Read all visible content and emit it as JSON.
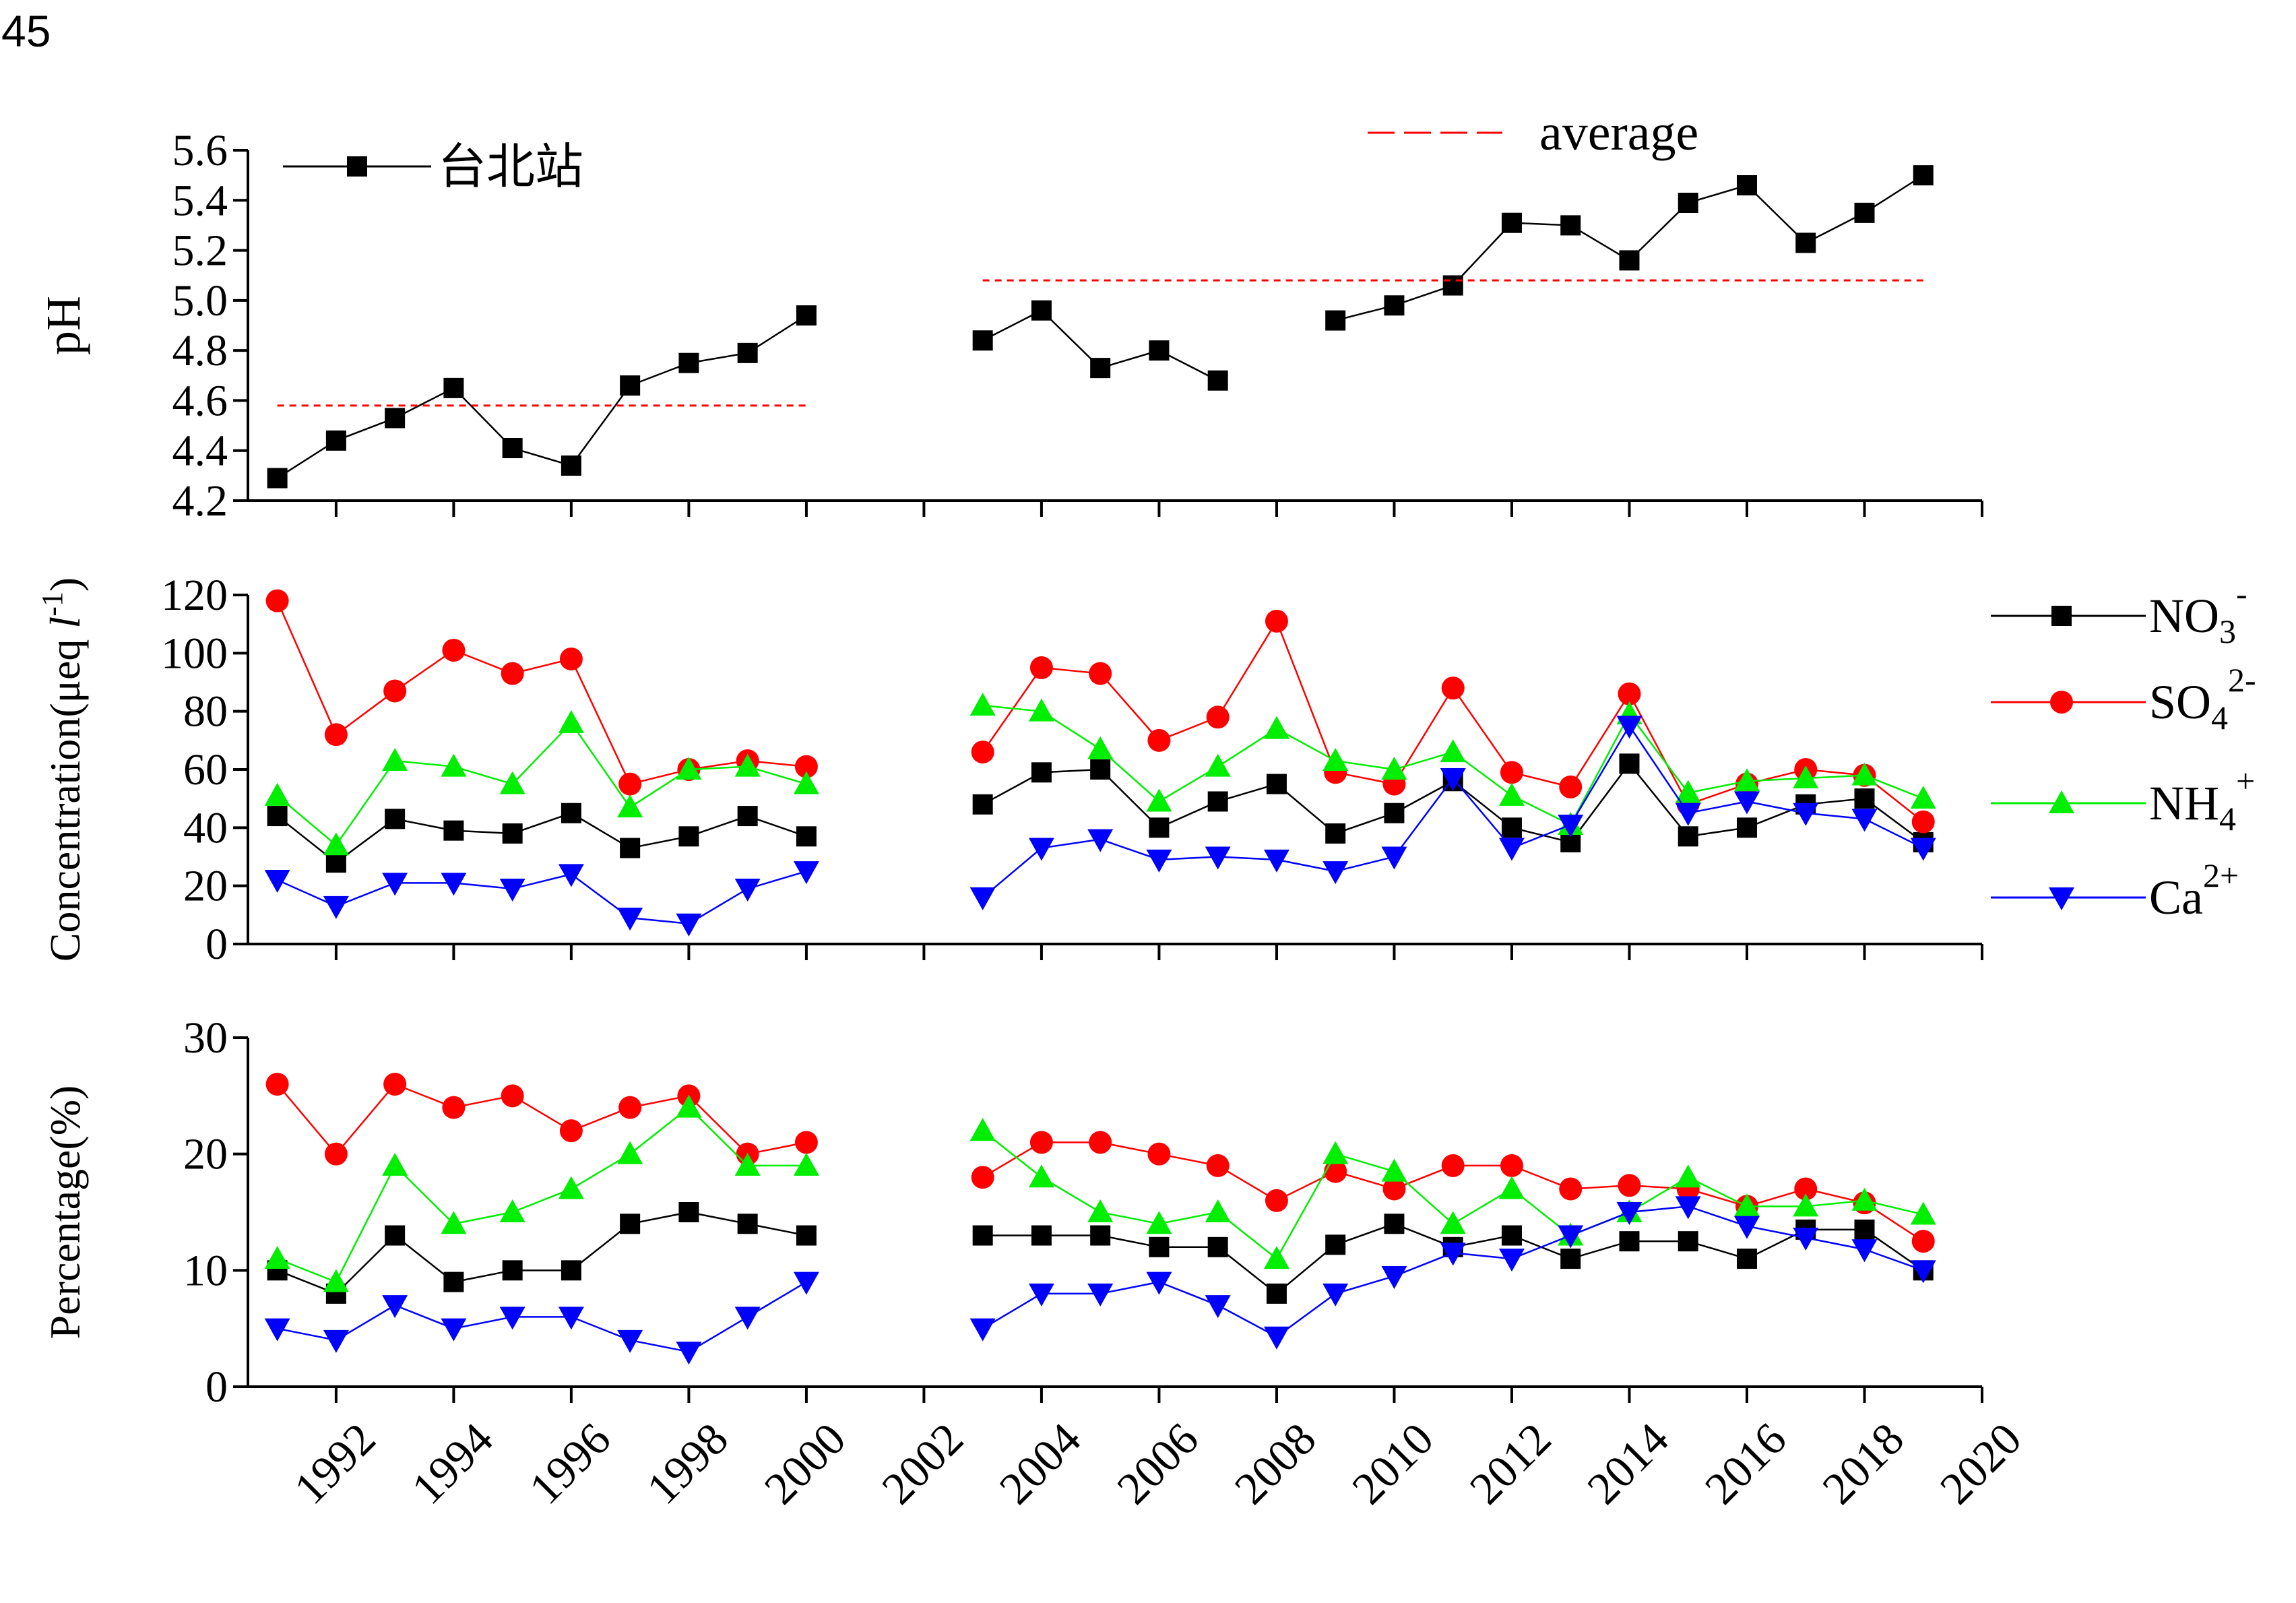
{
  "page_label": "45",
  "colors": {
    "axis": "#000000",
    "NO3": "#000000",
    "SO4": "#ff0000",
    "NH4": "#00ee00",
    "Ca": "#0000ff",
    "average": "#ff0000"
  },
  "chart_data": [
    {
      "type": "line",
      "ylabel": "pH",
      "ylim": [
        4.2,
        5.6
      ],
      "yticks": [
        "4.2",
        "4.4",
        "4.6",
        "4.8",
        "5.0",
        "5.2",
        "5.4",
        "5.6"
      ],
      "xlim": [
        1990.5,
        2020
      ],
      "legend": {
        "series_label": "台北站",
        "average_label": "average"
      },
      "series": [
        {
          "name": "台北站",
          "x": [
            1991,
            1992,
            1993,
            1994,
            1995,
            1996,
            1997,
            1998,
            1999,
            2000,
            2003,
            2004,
            2005,
            2006,
            2007,
            2009,
            2010,
            2011,
            2012,
            2013,
            2014,
            2015,
            2016,
            2017,
            2018,
            2019
          ],
          "values": [
            4.29,
            4.44,
            4.53,
            4.65,
            4.41,
            4.34,
            4.66,
            4.75,
            4.79,
            4.94,
            4.84,
            4.96,
            4.73,
            4.8,
            4.68,
            4.92,
            4.98,
            5.06,
            5.31,
            5.3,
            5.16,
            5.39,
            5.46,
            5.23,
            5.35,
            5.5
          ],
          "segments": [
            [
              0,
              9
            ],
            [
              10,
              14
            ],
            [
              15,
              25
            ]
          ]
        }
      ],
      "average_lines": [
        {
          "x_range": [
            1991,
            2000
          ],
          "value": 4.58
        },
        {
          "x_range": [
            2003,
            2019
          ],
          "value": 5.08
        }
      ]
    },
    {
      "type": "line",
      "ylabel": "Concentration(μeq l-1)",
      "ylim": [
        0,
        120
      ],
      "yticks": [
        "0",
        "20",
        "40",
        "60",
        "80",
        "100",
        "120"
      ],
      "xlim": [
        1990.5,
        2020
      ],
      "legend_position": "right",
      "x": [
        1991,
        1992,
        1993,
        1994,
        1995,
        1996,
        1997,
        1998,
        1999,
        2000,
        2003,
        2004,
        2005,
        2006,
        2007,
        2008,
        2009,
        2010,
        2011,
        2012,
        2013,
        2014,
        2015,
        2016,
        2017,
        2018,
        2019
      ],
      "segments": [
        [
          0,
          9
        ],
        [
          10,
          26
        ]
      ],
      "series": [
        {
          "name": "NO3-",
          "values": [
            44,
            28,
            43,
            39,
            38,
            45,
            33,
            37,
            44,
            37,
            48,
            59,
            60,
            40,
            49,
            55,
            38,
            45,
            56,
            40,
            35,
            62,
            37,
            40,
            48,
            50,
            35
          ]
        },
        {
          "name": "SO42-",
          "values": [
            118,
            72,
            87,
            101,
            93,
            98,
            55,
            60,
            63,
            61,
            66,
            95,
            93,
            70,
            78,
            111,
            59,
            55,
            88,
            59,
            54,
            86,
            48,
            55,
            60,
            58,
            42
          ]
        },
        {
          "name": "NH4+",
          "values": [
            51,
            34,
            63,
            61,
            55,
            76,
            47,
            60,
            61,
            55,
            82,
            80,
            67,
            49,
            61,
            74,
            63,
            60,
            66,
            51,
            41,
            79,
            52,
            56,
            57,
            58,
            50
          ]
        },
        {
          "name": "Ca2+",
          "values": [
            22,
            13,
            21,
            21,
            19,
            24,
            9,
            7,
            19,
            25,
            16,
            33,
            36,
            29,
            30,
            29,
            25,
            30,
            57,
            33,
            41,
            75,
            45,
            49,
            45,
            43,
            33
          ]
        }
      ]
    },
    {
      "type": "line",
      "ylabel": "Percentage(%)",
      "ylim": [
        0,
        30
      ],
      "yticks": [
        "0",
        "10",
        "20",
        "30"
      ],
      "xlim": [
        1990.5,
        2020
      ],
      "xtick_labels": [
        "1992",
        "1994",
        "1996",
        "1998",
        "2000",
        "2002",
        "2004",
        "2006",
        "2008",
        "2010",
        "2012",
        "2014",
        "2016",
        "2018",
        "2020"
      ],
      "x": [
        1991,
        1992,
        1993,
        1994,
        1995,
        1996,
        1997,
        1998,
        1999,
        2000,
        2003,
        2004,
        2005,
        2006,
        2007,
        2008,
        2009,
        2010,
        2011,
        2012,
        2013,
        2014,
        2015,
        2016,
        2017,
        2018,
        2019
      ],
      "segments": [
        [
          0,
          9
        ],
        [
          10,
          26
        ]
      ],
      "series": [
        {
          "name": "NO3-",
          "values": [
            10,
            8,
            13,
            9,
            10,
            10,
            14,
            15,
            14,
            13,
            13,
            13,
            13,
            12,
            12,
            8,
            12.2,
            14,
            12,
            13,
            11,
            12.5,
            12.5,
            11,
            13.5,
            13.5,
            10
          ]
        },
        {
          "name": "SO42-",
          "values": [
            26,
            20,
            26,
            24,
            25,
            22,
            24,
            25,
            20,
            21,
            18,
            21,
            21,
            20,
            19,
            16,
            18.5,
            17,
            19,
            19,
            17,
            17.3,
            17,
            15.5,
            17,
            15.8,
            12.5
          ]
        },
        {
          "name": "NH4+",
          "values": [
            11,
            9,
            19,
            14,
            15,
            17,
            20,
            24,
            19,
            19,
            22,
            18,
            15,
            14,
            15,
            11,
            20,
            18.5,
            14,
            17,
            13,
            15,
            18,
            15.5,
            15.5,
            16,
            14.8
          ]
        },
        {
          "name": "Ca2+",
          "values": [
            5,
            4,
            7,
            5,
            6,
            6,
            4,
            3,
            6,
            9,
            5,
            8,
            8,
            9,
            7,
            4.3,
            8,
            9.5,
            11.5,
            11,
            13,
            15,
            15.5,
            13.8,
            12.8,
            11.8,
            10
          ]
        }
      ]
    }
  ]
}
